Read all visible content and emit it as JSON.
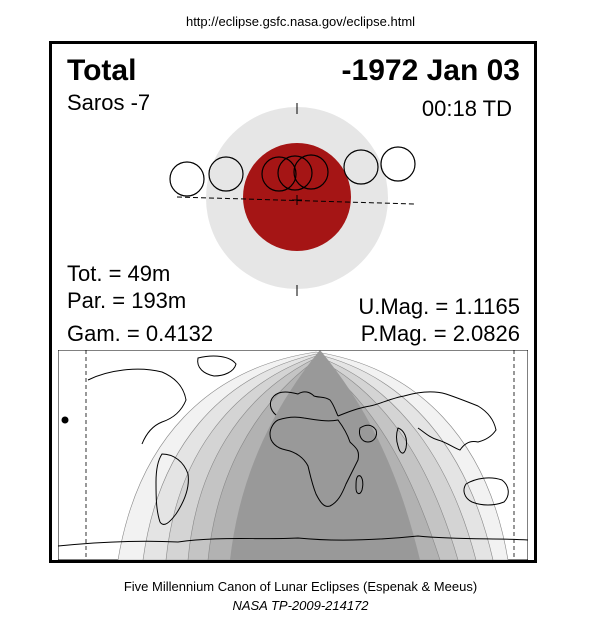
{
  "header": {
    "url": "http://eclipse.gsfc.nasa.gov/eclipse.html"
  },
  "eclipse": {
    "type": "Total",
    "date": "-1972 Jan 03",
    "saros": "Saros  -7",
    "time": "00:18 TD",
    "tot": "Tot. =  49m",
    "par": "Par. = 193m",
    "gam": "Gam. = 0.4132",
    "umag": "U.Mag. = 1.1165",
    "pmag": "P.Mag. = 2.0826"
  },
  "colors": {
    "penumbra": "#e6e6e6",
    "umbra_moon": "#a51515",
    "map_total": "#999999",
    "map_bands": [
      "#f2f2f2",
      "#e4e4e4",
      "#d4d4d4",
      "#c4c4c4",
      "#b2b2b2"
    ]
  },
  "footer": {
    "line1": "Five Millennium Canon of Lunar Eclipses (Espenak & Meeus)",
    "line2": "NASA TP-2009-214172"
  }
}
